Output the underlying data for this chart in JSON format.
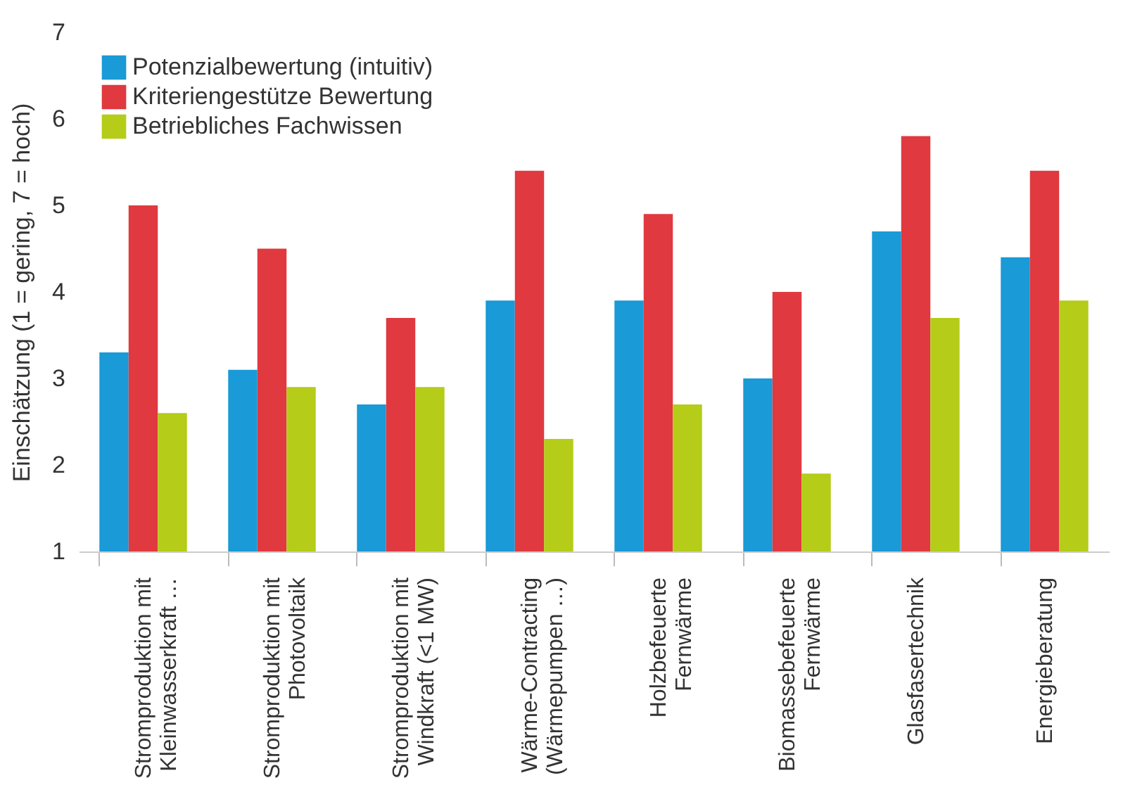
{
  "chart_data": {
    "type": "bar",
    "ylabel": "Einschätzung (1 = gering, 7 = hoch)",
    "categories": [
      "Stromproduktion mit\nKleinwasserkraft …",
      "Stromproduktion mit\nPhotovoltaik",
      "Stromproduktion mit\nWindkraft (<1 MW)",
      "Wärme-Contracting\n(Wärmepumpen …)",
      "Holzbefeuerte\nFernwärme",
      "Biomassebefeuerte\nFernwärme",
      "Glasfasertechnik",
      "Energieberatung"
    ],
    "series": [
      {
        "name": "Potenzialbewertung (intuitiv)",
        "color": "#1a9ad6",
        "values": [
          3.3,
          3.1,
          2.7,
          3.9,
          3.9,
          3.0,
          4.7,
          4.4
        ]
      },
      {
        "name": "Kriteriengestütze Bewertung",
        "color": "#e0393f",
        "values": [
          5.0,
          4.5,
          3.7,
          5.4,
          4.9,
          4.0,
          5.8,
          5.4
        ]
      },
      {
        "name": "Betriebliches Fachwissen",
        "color": "#b5cc18",
        "values": [
          2.6,
          2.9,
          2.9,
          2.3,
          2.7,
          1.9,
          3.7,
          3.9
        ]
      }
    ],
    "ylim": [
      1,
      7
    ],
    "yticks": [
      1,
      2,
      3,
      4,
      5,
      6,
      7
    ],
    "grid": false,
    "legend": "top left"
  }
}
